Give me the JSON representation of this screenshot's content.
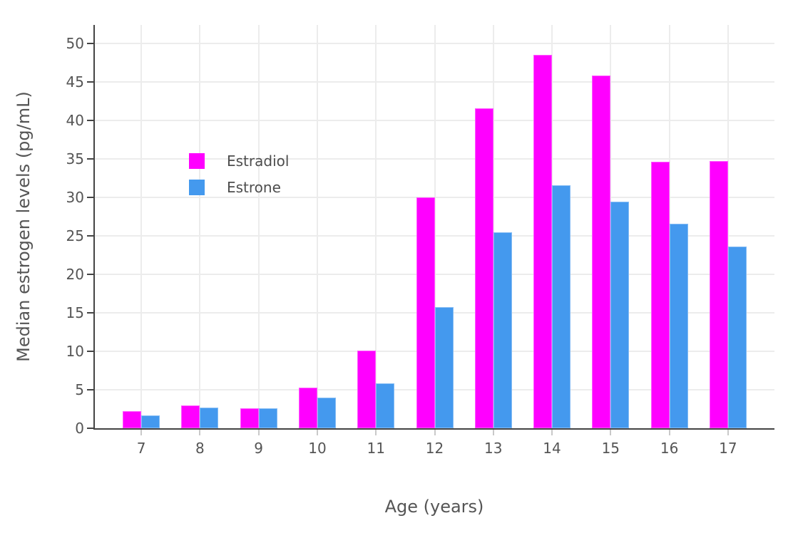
{
  "chart_data": {
    "type": "bar",
    "title": "",
    "xlabel": "Age (years)",
    "ylabel": "Median estrogen levels (pg/mL)",
    "categories": [
      "7",
      "8",
      "9",
      "10",
      "11",
      "12",
      "13",
      "14",
      "15",
      "16",
      "17"
    ],
    "series": [
      {
        "name": "Estradiol",
        "color": "#FF00FF",
        "values": [
          2.2,
          3.0,
          2.6,
          5.3,
          10.1,
          30.0,
          41.6,
          48.5,
          45.8,
          34.6,
          34.7
        ]
      },
      {
        "name": "Estrone",
        "color": "#4499EE",
        "values": [
          1.7,
          2.7,
          2.6,
          4.0,
          5.8,
          15.7,
          25.5,
          31.6,
          29.4,
          26.6,
          23.6
        ]
      }
    ],
    "yticks": [
      0,
      5,
      10,
      15,
      20,
      25,
      30,
      35,
      40,
      45,
      50
    ],
    "ylim": [
      0,
      52.4
    ],
    "grid": true,
    "legend_position": "inside-top-left",
    "colors": {
      "background": "#FFFFFF",
      "grid": "#ECECEC",
      "axis_line": "#444444",
      "tick_text": "#555555",
      "x_tick_mark": "#C9C9C9"
    }
  }
}
